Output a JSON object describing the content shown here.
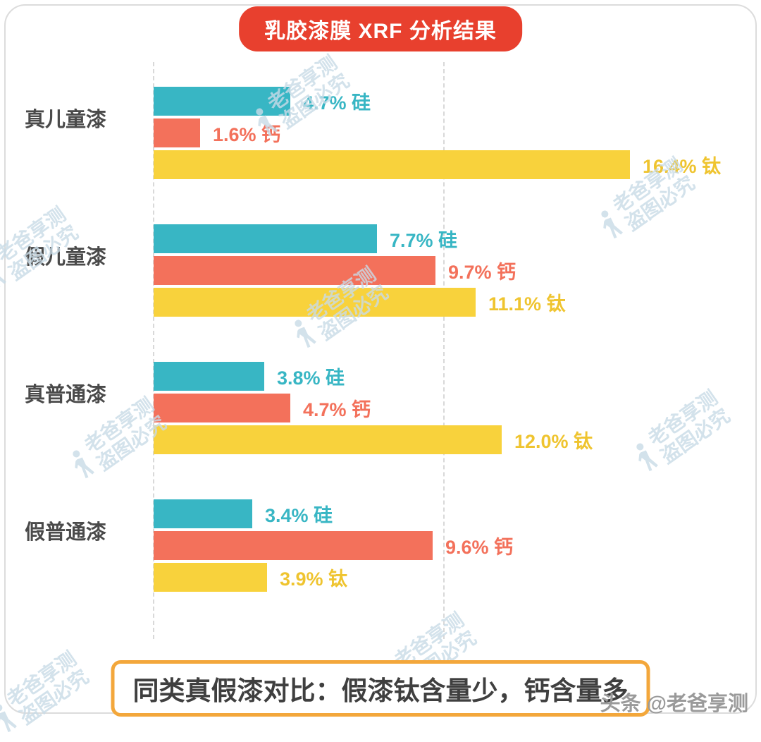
{
  "page": {
    "title": "乳胶漆膜 XRF 分析结果",
    "banner": "同类真假漆对比：假漆钛含量少，钙含量多",
    "credit": "头条 @老爸享测"
  },
  "watermark": {
    "line1": "老爸享测",
    "line2": "盗图必究"
  },
  "colors": {
    "badge_red": "#e8402e",
    "banner_border_orange": "#f3a73b",
    "bar_colors": {
      "硅": "#38b6c4",
      "钙": "#f3715b",
      "钛": "#f8d23c"
    },
    "label_colors": {
      "硅": "#38b6c4",
      "钙": "#f3715b",
      "钛": "#efc42f"
    },
    "category_label": "#4a4a4a",
    "watermark": "#c9dbe7"
  },
  "chart_data": {
    "type": "bar",
    "orientation": "horizontal",
    "title": "乳胶漆膜 XRF 分析结果",
    "unit": "%",
    "xlim": [
      0,
      20
    ],
    "gridlines_percent": [
      0,
      10
    ],
    "legend": "none",
    "categories": [
      "真儿童漆",
      "假儿童漆",
      "真普通漆",
      "假普通漆"
    ],
    "series": [
      {
        "name": "硅",
        "values": [
          4.7,
          7.7,
          3.8,
          3.4
        ]
      },
      {
        "name": "钙",
        "values": [
          1.6,
          9.7,
          4.7,
          9.6
        ]
      },
      {
        "name": "钛",
        "values": [
          16.4,
          11.1,
          12.0,
          3.9
        ]
      }
    ],
    "groups": [
      {
        "label": "真儿童漆",
        "bars": [
          {
            "element": "硅",
            "value": 4.7,
            "display": "4.7% 硅"
          },
          {
            "element": "钙",
            "value": 1.6,
            "display": "1.6%  钙"
          },
          {
            "element": "钛",
            "value": 16.4,
            "display": "16.4% 钛"
          }
        ]
      },
      {
        "label": "假儿童漆",
        "bars": [
          {
            "element": "硅",
            "value": 7.7,
            "display": "7.7% 硅"
          },
          {
            "element": "钙",
            "value": 9.7,
            "display": "9.7%  钙"
          },
          {
            "element": "钛",
            "value": 11.1,
            "display": "11.1% 钛"
          }
        ]
      },
      {
        "label": "真普通漆",
        "bars": [
          {
            "element": "硅",
            "value": 3.8,
            "display": "3.8% 硅"
          },
          {
            "element": "钙",
            "value": 4.7,
            "display": "4.7% 钙"
          },
          {
            "element": "钛",
            "value": 12.0,
            "display": "12.0% 钛"
          }
        ]
      },
      {
        "label": "假普通漆",
        "bars": [
          {
            "element": "硅",
            "value": 3.4,
            "display": "3.4% 硅"
          },
          {
            "element": "钙",
            "value": 9.6,
            "display": "9.6% 钙"
          },
          {
            "element": "钛",
            "value": 3.9,
            "display": "3.9% 钛"
          }
        ]
      }
    ]
  }
}
